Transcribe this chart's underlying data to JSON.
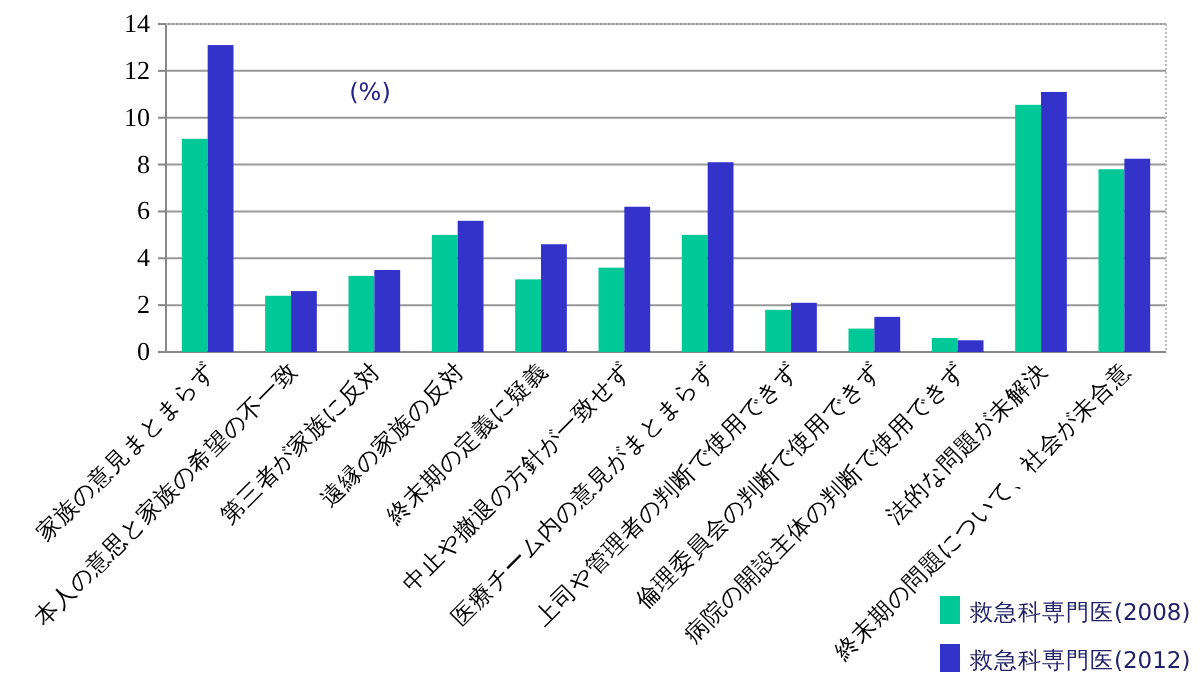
{
  "chart_data": {
    "type": "bar",
    "categories": [
      "家族の意見まとまらず",
      "本人の意思と家族の希望の不一致",
      "第三者が家族に反対",
      "遠縁の家族の反対",
      "終末期の定義に疑義",
      "中止や撤退の方針が一致せず",
      "医療チーム内の意見がまとまらず",
      "上司や管理者の判断で使用できず",
      "倫理委員会の判断で使用できず",
      "病院の開設主体の判断で使用できず",
      "法的な問題が未解決",
      "終末期の問題について、社会が未合意"
    ],
    "series": [
      {
        "name": "救急科専門医(2008)",
        "color": "#00c896",
        "values": [
          9.1,
          2.4,
          3.25,
          5.0,
          3.1,
          3.6,
          5.0,
          1.8,
          1.0,
          0.6,
          10.55,
          7.8
        ]
      },
      {
        "name": "救急科専門医(2012)",
        "color": "#3333cc",
        "values": [
          13.1,
          2.6,
          3.5,
          5.6,
          4.6,
          6.2,
          8.1,
          2.1,
          1.5,
          0.5,
          11.1,
          8.25
        ]
      }
    ],
    "ylim": [
      0,
      14
    ],
    "yticks": [
      0,
      2,
      4,
      6,
      8,
      10,
      12,
      14
    ],
    "grid": "y",
    "legend": "bottom right",
    "annotations": [
      "(%)"
    ]
  }
}
